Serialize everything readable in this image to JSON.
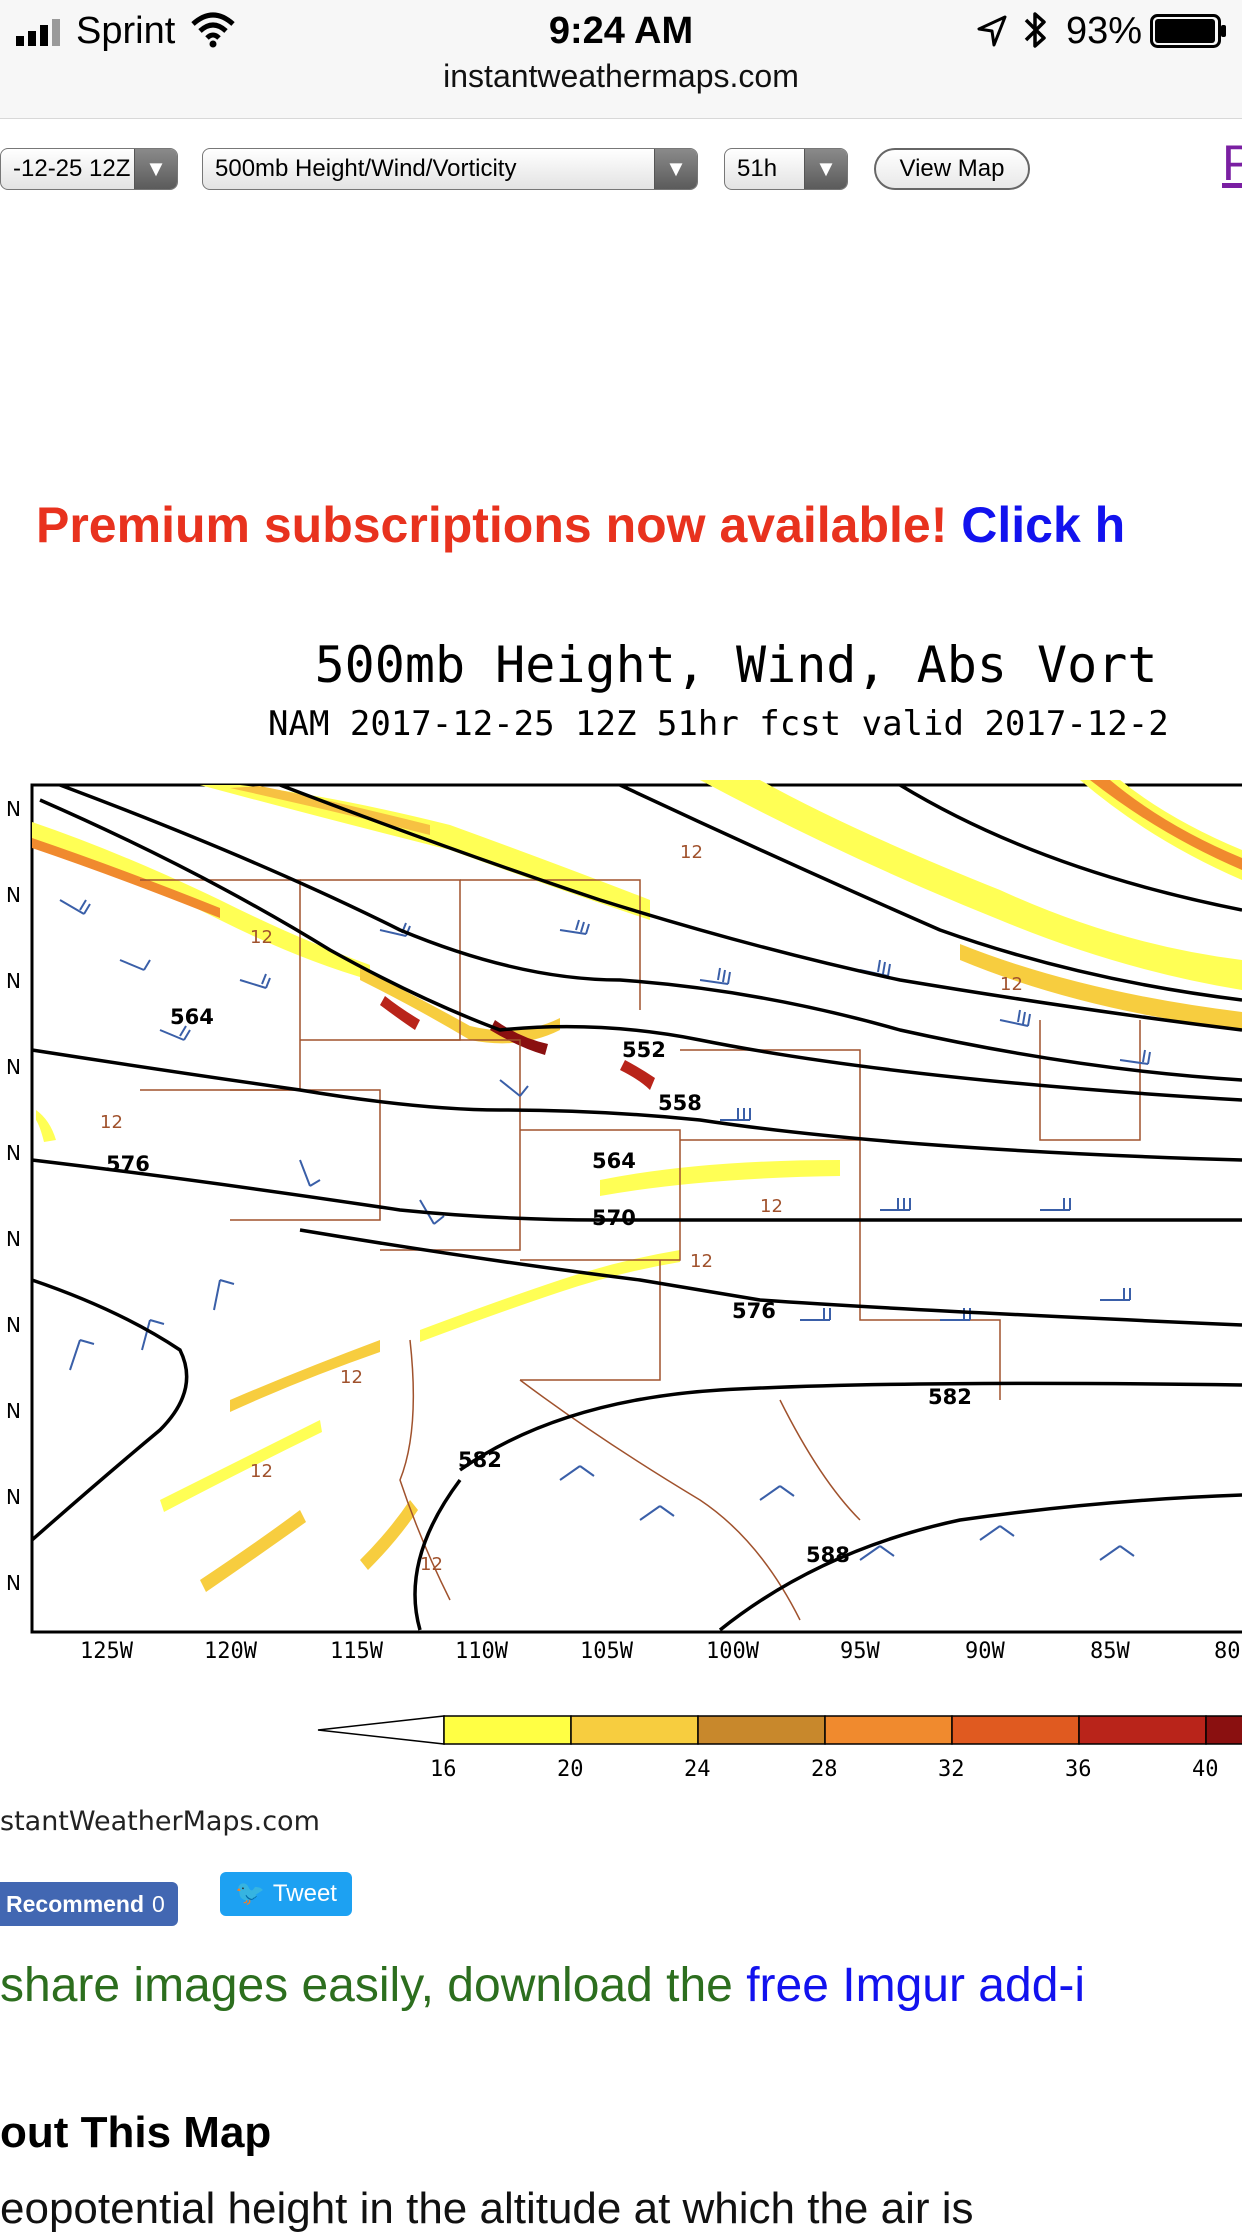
{
  "status_bar": {
    "carrier": "Sprint",
    "time": "9:24 AM",
    "battery": "93%",
    "url": "instantweathermaps.com",
    "icons": [
      "signal-icon",
      "wifi-icon",
      "location-arrow-icon",
      "bluetooth-icon",
      "battery-icon"
    ]
  },
  "controls": {
    "run_select": "-12-25 12Z",
    "product_select": "500mb Height/Wind/Vorticity",
    "hour_select": "51h",
    "view_map_label": "View Map",
    "cut_link": "P"
  },
  "promo": {
    "red_text": "Premium subscriptions now available!",
    "blue_text": "Click h"
  },
  "map": {
    "title": "500mb Height, Wind, Abs Vort",
    "subtitle": "NAM 2017-12-25 12Z 51hr fcst valid 2017-12-2",
    "lon_labels": [
      "125W",
      "120W",
      "115W",
      "110W",
      "105W",
      "100W",
      "95W",
      "90W",
      "85W",
      "80"
    ],
    "lat_labels": [
      "N",
      "N",
      "N",
      "N",
      "N",
      "N",
      "N",
      "N",
      "N",
      "N"
    ],
    "contour_labels": [
      "564",
      "552",
      "558",
      "564",
      "570",
      "576",
      "576",
      "582",
      "582",
      "588"
    ],
    "vort_label": "12",
    "colorbar_ticks": [
      "16",
      "20",
      "24",
      "28",
      "32",
      "36",
      "40"
    ],
    "colorbar_colors": [
      "#ffff44",
      "#f7cd3f",
      "#c8882c",
      "#f08a2e",
      "#e05a20",
      "#b9241a",
      "#8a1010"
    ],
    "credit": "stantWeatherMaps.com"
  },
  "social": {
    "recommend_label": "Recommend",
    "recommend_count": "0",
    "tweet_label": "Tweet"
  },
  "imgur": {
    "green_text": "share images easily, download the",
    "blue_text": "free Imgur add-i"
  },
  "about": {
    "heading": "out This Map",
    "cut_line": "eopotential height in the altitude at which the air is"
  }
}
